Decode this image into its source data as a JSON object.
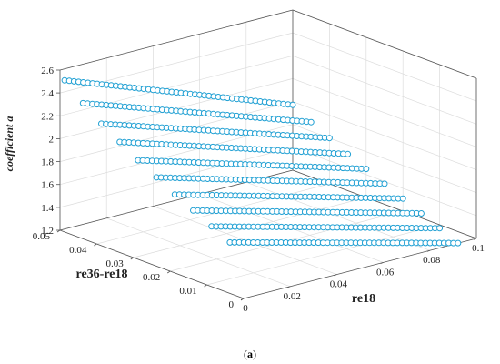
{
  "chart_data": {
    "type": "scatter",
    "xlabel": "re18",
    "ylabel": "re36-re18",
    "zlabel": "coefficient a",
    "x_ticks": [
      "0",
      "0.02",
      "0.04",
      "0.06",
      "0.08",
      "0.1"
    ],
    "y_ticks": [
      "0",
      "0.01",
      "0.02",
      "0.03",
      "0.04",
      "0.05"
    ],
    "z_ticks": [
      "1.2",
      "1.4",
      "1.6",
      "1.8",
      "2",
      "2.2",
      "2.4",
      "2.6"
    ],
    "xlim": [
      0,
      0.1
    ],
    "ylim": [
      0,
      0.05
    ],
    "zlim": [
      1.2,
      2.6
    ],
    "grid": true,
    "marker": "open circle",
    "color": "#1e9fd3",
    "x_range": [
      0.002,
      0.1
    ],
    "points_per_series": 50,
    "series": [
      {
        "y": 0.005,
        "z_start": 1.62,
        "z_end": 1.1
      },
      {
        "y": 0.01,
        "z_start": 1.7,
        "z_end": 1.17
      },
      {
        "y": 0.015,
        "z_start": 1.78,
        "z_end": 1.24
      },
      {
        "y": 0.02,
        "z_start": 1.86,
        "z_end": 1.31
      },
      {
        "y": 0.025,
        "z_start": 1.95,
        "z_end": 1.38
      },
      {
        "y": 0.03,
        "z_start": 2.04,
        "z_end": 1.45
      },
      {
        "y": 0.035,
        "z_start": 2.14,
        "z_end": 1.52
      },
      {
        "y": 0.04,
        "z_start": 2.24,
        "z_end": 1.6
      },
      {
        "y": 0.045,
        "z_start": 2.36,
        "z_end": 1.68
      },
      {
        "y": 0.05,
        "z_start": 2.5,
        "z_end": 1.77
      }
    ]
  },
  "caption": {
    "open": "(",
    "label": "a",
    "close": ")"
  }
}
